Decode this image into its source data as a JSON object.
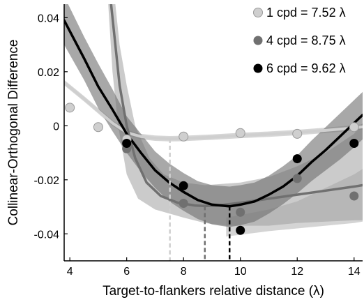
{
  "chart_data": {
    "type": "scatter",
    "title": "",
    "xlabel": "Target-to-flankers relative distance (λ)",
    "ylabel": "Collinear-Orthogonal Difference",
    "xlim": [
      3.8,
      14.3
    ],
    "ylim": [
      -0.05,
      0.045
    ],
    "x_ticks": [
      4,
      6,
      8,
      10,
      12,
      14
    ],
    "y_ticks": [
      0.04,
      0.02,
      0,
      -0.02,
      -0.04
    ],
    "x_tick_labels": [
      "4",
      "6",
      "8",
      "10",
      "12",
      "14"
    ],
    "y_tick_labels": [
      "0.04",
      "0.02",
      "0",
      "-0.02",
      "-0.04"
    ],
    "legend_position": "top-right",
    "series": [
      {
        "name": "1 cpd = 7.52 λ",
        "color": "#cfcfcf",
        "band_color": "#c8c8c8",
        "minimum": 7.52,
        "points": [
          [
            4,
            0.0067
          ],
          [
            5,
            -0.0005
          ],
          [
            6,
            -0.005
          ],
          [
            8,
            -0.004
          ],
          [
            10,
            -0.0027
          ],
          [
            12,
            -0.003
          ],
          [
            14,
            -0.0005
          ]
        ],
        "fit": [
          [
            3.8,
            0.016
          ],
          [
            4.5,
            0.01
          ],
          [
            5,
            0.0055
          ],
          [
            5.5,
            0.001
          ],
          [
            6,
            -0.0025
          ],
          [
            6.5,
            -0.004
          ],
          [
            7,
            -0.0046
          ],
          [
            7.52,
            -0.0048
          ],
          [
            8,
            -0.0047
          ],
          [
            9,
            -0.0042
          ],
          [
            10,
            -0.0036
          ],
          [
            11,
            -0.0031
          ],
          [
            12,
            -0.0025
          ],
          [
            13,
            -0.0017
          ],
          [
            14,
            -0.0008
          ],
          [
            14.3,
            -0.0004
          ]
        ],
        "band_upper": [
          [
            3.8,
            0.017
          ],
          [
            4.5,
            0.011
          ],
          [
            5,
            0.0065
          ],
          [
            5.5,
            0.002
          ],
          [
            6,
            -0.0015
          ],
          [
            6.5,
            -0.003
          ],
          [
            7,
            -0.0036
          ],
          [
            7.52,
            -0.0038
          ],
          [
            8,
            -0.0037
          ],
          [
            9,
            -0.0032
          ],
          [
            10,
            -0.0026
          ],
          [
            11,
            -0.0021
          ],
          [
            12,
            -0.0015
          ],
          [
            13,
            -0.0007
          ],
          [
            14,
            0.0002
          ],
          [
            14.3,
            0.0006
          ]
        ],
        "band_lower": [
          [
            3.8,
            0.015
          ],
          [
            4.5,
            0.009
          ],
          [
            5,
            0.0045
          ],
          [
            5.5,
            0
          ],
          [
            6,
            -0.0035
          ],
          [
            6.5,
            -0.005
          ],
          [
            7,
            -0.0056
          ],
          [
            7.52,
            -0.0058
          ],
          [
            8,
            -0.0057
          ],
          [
            9,
            -0.0052
          ],
          [
            10,
            -0.0046
          ],
          [
            11,
            -0.0041
          ],
          [
            12,
            -0.0035
          ],
          [
            13,
            -0.0027
          ],
          [
            14,
            -0.0018
          ],
          [
            14.3,
            -0.0014
          ]
        ]
      },
      {
        "name": "4 cpd = 8.75 λ",
        "color": "#707070",
        "band_color": "#a0a0a0",
        "minimum": 8.75,
        "points": [
          [
            6,
            -0.0085
          ],
          [
            8,
            -0.0287
          ],
          [
            10,
            -0.032
          ],
          [
            12,
            -0.0195
          ],
          [
            14,
            -0.026
          ]
        ],
        "fit": [
          [
            5.45,
            0.045
          ],
          [
            5.6,
            0.03
          ],
          [
            5.75,
            0.015
          ],
          [
            6,
            0
          ],
          [
            6.3,
            -0.012
          ],
          [
            6.7,
            -0.021
          ],
          [
            7.2,
            -0.026
          ],
          [
            7.8,
            -0.0285
          ],
          [
            8.4,
            -0.0295
          ],
          [
            8.75,
            -0.0297
          ],
          [
            9.2,
            -0.0295
          ],
          [
            10,
            -0.0285
          ],
          [
            11,
            -0.027
          ],
          [
            12,
            -0.0255
          ],
          [
            13,
            -0.024
          ],
          [
            14,
            -0.0225
          ],
          [
            14.3,
            -0.022
          ]
        ],
        "band_upper": [
          [
            5.6,
            0.045
          ],
          [
            5.75,
            0.03
          ],
          [
            6,
            0.015
          ],
          [
            6.3,
            0
          ],
          [
            6.8,
            -0.012
          ],
          [
            7.3,
            -0.018
          ],
          [
            8,
            -0.021
          ],
          [
            8.75,
            -0.022
          ],
          [
            10,
            -0.021
          ],
          [
            11,
            -0.019
          ],
          [
            12,
            -0.015
          ],
          [
            13,
            -0.01
          ],
          [
            14,
            -0.003
          ],
          [
            14.3,
            0.001
          ]
        ],
        "band_lower": [
          [
            5.35,
            0.045
          ],
          [
            5.5,
            0.02
          ],
          [
            5.7,
            0
          ],
          [
            6,
            -0.018
          ],
          [
            6.4,
            -0.027
          ],
          [
            7,
            -0.031
          ],
          [
            8,
            -0.034
          ],
          [
            8.75,
            -0.036
          ],
          [
            9.5,
            -0.037
          ],
          [
            10,
            -0.037
          ],
          [
            11,
            -0.037
          ],
          [
            12,
            -0.036
          ],
          [
            13,
            -0.0355
          ],
          [
            14,
            -0.035
          ],
          [
            14.3,
            -0.035
          ]
        ],
        "extra_band_upper": [
          [
            9.5,
            -0.034
          ],
          [
            11,
            -0.031
          ],
          [
            12,
            -0.028
          ],
          [
            13,
            -0.023
          ],
          [
            14,
            -0.018
          ],
          [
            14.3,
            -0.016
          ]
        ],
        "extra_band_lower": [
          [
            9.5,
            -0.041
          ],
          [
            11,
            -0.039
          ],
          [
            12,
            -0.038
          ],
          [
            13,
            -0.037
          ],
          [
            14,
            -0.036
          ],
          [
            14.3,
            -0.0355
          ]
        ],
        "legend_note": ""
      },
      {
        "name": "6 cpd = 9.62 λ",
        "color": "#000000",
        "band_color": "#6e6e6e",
        "minimum": 9.62,
        "points": [
          [
            6,
            -0.0065
          ],
          [
            8,
            -0.0222
          ],
          [
            10,
            -0.0387
          ],
          [
            12,
            -0.0122
          ],
          [
            14,
            -0.0065
          ]
        ],
        "fit": [
          [
            3.8,
            0.039
          ],
          [
            4.5,
            0.025
          ],
          [
            5,
            0.0145
          ],
          [
            5.5,
            0.006
          ],
          [
            6,
            -0.003
          ],
          [
            6.5,
            -0.01
          ],
          [
            7,
            -0.0165
          ],
          [
            7.5,
            -0.021
          ],
          [
            8,
            -0.0245
          ],
          [
            8.5,
            -0.0275
          ],
          [
            9,
            -0.0292
          ],
          [
            9.62,
            -0.0298
          ],
          [
            10,
            -0.0292
          ],
          [
            10.5,
            -0.028
          ],
          [
            11,
            -0.0255
          ],
          [
            11.5,
            -0.0225
          ],
          [
            12,
            -0.0185
          ],
          [
            12.5,
            -0.0135
          ],
          [
            13,
            -0.009
          ],
          [
            13.5,
            -0.004
          ],
          [
            14,
            0.001
          ],
          [
            14.3,
            0.004
          ]
        ],
        "band_upper": [
          [
            3.8,
            0.048
          ],
          [
            4.5,
            0.033
          ],
          [
            5,
            0.023
          ],
          [
            5.5,
            0.0135
          ],
          [
            6,
            0.0035
          ],
          [
            6.5,
            -0.003
          ],
          [
            7,
            -0.0095
          ],
          [
            7.5,
            -0.014
          ],
          [
            8,
            -0.0175
          ],
          [
            8.5,
            -0.0205
          ],
          [
            9,
            -0.022
          ],
          [
            9.62,
            -0.0225
          ],
          [
            10,
            -0.022
          ],
          [
            10.5,
            -0.021
          ],
          [
            11,
            -0.0185
          ],
          [
            11.5,
            -0.015
          ],
          [
            12,
            -0.011
          ],
          [
            12.5,
            -0.0055
          ],
          [
            13,
            -0.0005
          ],
          [
            13.5,
            0.0045
          ],
          [
            14,
            0.0095
          ],
          [
            14.3,
            0.0125
          ]
        ],
        "band_lower": [
          [
            3.8,
            0.03
          ],
          [
            4.5,
            0.017
          ],
          [
            5,
            0.0065
          ],
          [
            5.5,
            -0.002
          ],
          [
            6,
            -0.01
          ],
          [
            6.5,
            -0.017
          ],
          [
            7,
            -0.023
          ],
          [
            7.5,
            -0.028
          ],
          [
            8,
            -0.0315
          ],
          [
            8.5,
            -0.0345
          ],
          [
            9,
            -0.0365
          ],
          [
            9.62,
            -0.0375
          ],
          [
            10,
            -0.0368
          ],
          [
            10.5,
            -0.0355
          ],
          [
            11,
            -0.0325
          ],
          [
            11.5,
            -0.029
          ],
          [
            12,
            -0.025
          ],
          [
            12.5,
            -0.0205
          ],
          [
            13,
            -0.0165
          ],
          [
            13.5,
            -0.0125
          ],
          [
            14,
            -0.008
          ],
          [
            14.3,
            -0.005
          ]
        ]
      }
    ]
  }
}
